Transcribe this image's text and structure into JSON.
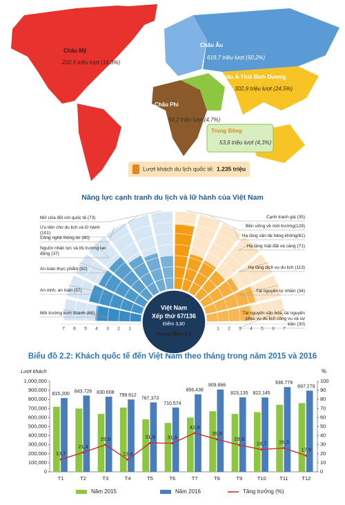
{
  "map": {
    "regions": [
      {
        "name": "Châu Mỹ",
        "value": "200,9 triệu lượt (16,3%)"
      },
      {
        "name": "Châu Âu",
        "value": "619,7 triệu lượt (50,2%)"
      },
      {
        "name": "Châu Á-Thái Bình Dương",
        "value": "302,9 triệu lượt (24,5%)"
      },
      {
        "name": "Châu Phi",
        "value": "58,2 triệu lượt (4,7%)"
      },
      {
        "name": "Trung Đông",
        "value": "53,6 triệu lượt (4,3%)"
      }
    ],
    "total": {
      "label": "Lượt khách du lịch quốc tế:",
      "value": "1.235 triệu"
    }
  },
  "radial": {
    "title": "Năng lực cạnh tranh du lịch và lữ hành của Việt Nam",
    "rlim": [
      0,
      7
    ],
    "scale_ticks": [
      1,
      2,
      3,
      4,
      5,
      6,
      7
    ],
    "scale_label": "Thang điểm 1-7",
    "left_color": "#2e86c1",
    "right_color": "#f39c12",
    "left": [
      {
        "label": "Mở cửa đối với quốc tế (73)",
        "score": 3.0
      },
      {
        "label": "Ưu tiên cho du lịch và lữ hành (101)",
        "score": 3.4
      },
      {
        "label": "Công nghệ thông tin (80)",
        "score": 3.7
      },
      {
        "label": "Nguồn nhân lực và thị trường lao động (37)",
        "score": 4.6
      },
      {
        "label": "An toàn thực phẩm (82)",
        "score": 4.6
      },
      {
        "label": "An ninh, an toàn (57)",
        "score": 4.9
      },
      {
        "label": "Môi trường kinh doanh (68)",
        "score": 4.1
      }
    ],
    "right": [
      {
        "label": "Cạnh tranh giá (35)",
        "score": 5.8
      },
      {
        "label": "Bền vững về môi trường(129)",
        "score": 3.3
      },
      {
        "label": "Hạ tầng vận tải hàng không(61)",
        "score": 3.2
      },
      {
        "label": "Hạ tầng mặt đất và cảng (71)",
        "score": 3.0
      },
      {
        "label": "Hạ tầng dịch vụ du lịch (113)",
        "score": 3.5
      },
      {
        "label": "Tài nguyên tự nhiên (34)",
        "score": 4.6
      },
      {
        "label": "Tài nguyên văn hóa, tài nguyên phục vụ du lịch công vụ và sự kiện (30)",
        "score": 4.1
      }
    ],
    "center": {
      "country": "Việt Nam",
      "rank": "Xếp thứ 67/136",
      "score": "Điểm 3,80"
    }
  },
  "chart_data": {
    "type": "combo",
    "title": "Biểu đồ 2.2: Khách quốc tế đến Việt Nam theo tháng trong năm 2015 và 2016",
    "ylabel": "Lượt khách",
    "y2label": "%",
    "categories": [
      "T1",
      "T2",
      "T3",
      "T4",
      "T5",
      "T6",
      "T7",
      "T8",
      "T9",
      "T10",
      "T11",
      "T12"
    ],
    "series": [
      {
        "name": "Năm 2015",
        "color": "#8dc63f",
        "kind": "bar",
        "values": [
          720000,
          700000,
          640000,
          710000,
          580000,
          540000,
          600000,
          670000,
          640000,
          660000,
          740000,
          760000
        ]
      },
      {
        "name": "Năm 2016",
        "color": "#4a7ebb",
        "kind": "bar",
        "values": [
          815200,
          843726,
          830608,
          799612,
          767373,
          710574,
          856438,
          909866,
          823135,
          822145,
          936779,
          897279
        ],
        "value_labels": [
          "815,200",
          "843.726",
          "830.608",
          "799.612",
          "767,373",
          "710,574",
          "856,438",
          "909.866",
          "823,135",
          "822,145",
          "936.779",
          "897.279"
        ]
      },
      {
        "name": "Tăng trưởng (%)",
        "color": "#c9302c",
        "kind": "line",
        "axis": "y2",
        "values": [
          13.7,
          21.4,
          29.9,
          13.4,
          31.9,
          31.6,
          42.9,
          35.9,
          29.6,
          24.7,
          26.3,
          17.9
        ],
        "value_labels": [
          "13,7",
          "21,4",
          "29,9",
          "13,4",
          "31,9",
          "31,6",
          "42,9",
          "35,9",
          "29,6",
          "24,7",
          "26,3",
          "17,9"
        ]
      }
    ],
    "ylim": [
      0,
      1000000
    ],
    "yticks": [
      0,
      {
        "value": 100000,
        "label": "100,000"
      },
      {
        "value": 200000,
        "label": "200,000"
      },
      {
        "value": 300000,
        "label": "300,000"
      },
      {
        "value": 400000,
        "label": "400,000"
      },
      {
        "value": 500000,
        "label": "500,000"
      },
      {
        "value": 600000,
        "label": "600,000"
      },
      {
        "value": 700000,
        "label": "700,000"
      },
      {
        "value": 800000,
        "label": "800,000"
      },
      {
        "value": 900000,
        "label": "900,000"
      },
      {
        "value": 1000000,
        "label": "1,000,000"
      }
    ],
    "y2lim": [
      0,
      100
    ],
    "y2ticks": [
      0,
      10,
      20,
      30,
      40,
      50,
      60,
      70,
      80,
      90,
      100
    ],
    "grid": false
  }
}
